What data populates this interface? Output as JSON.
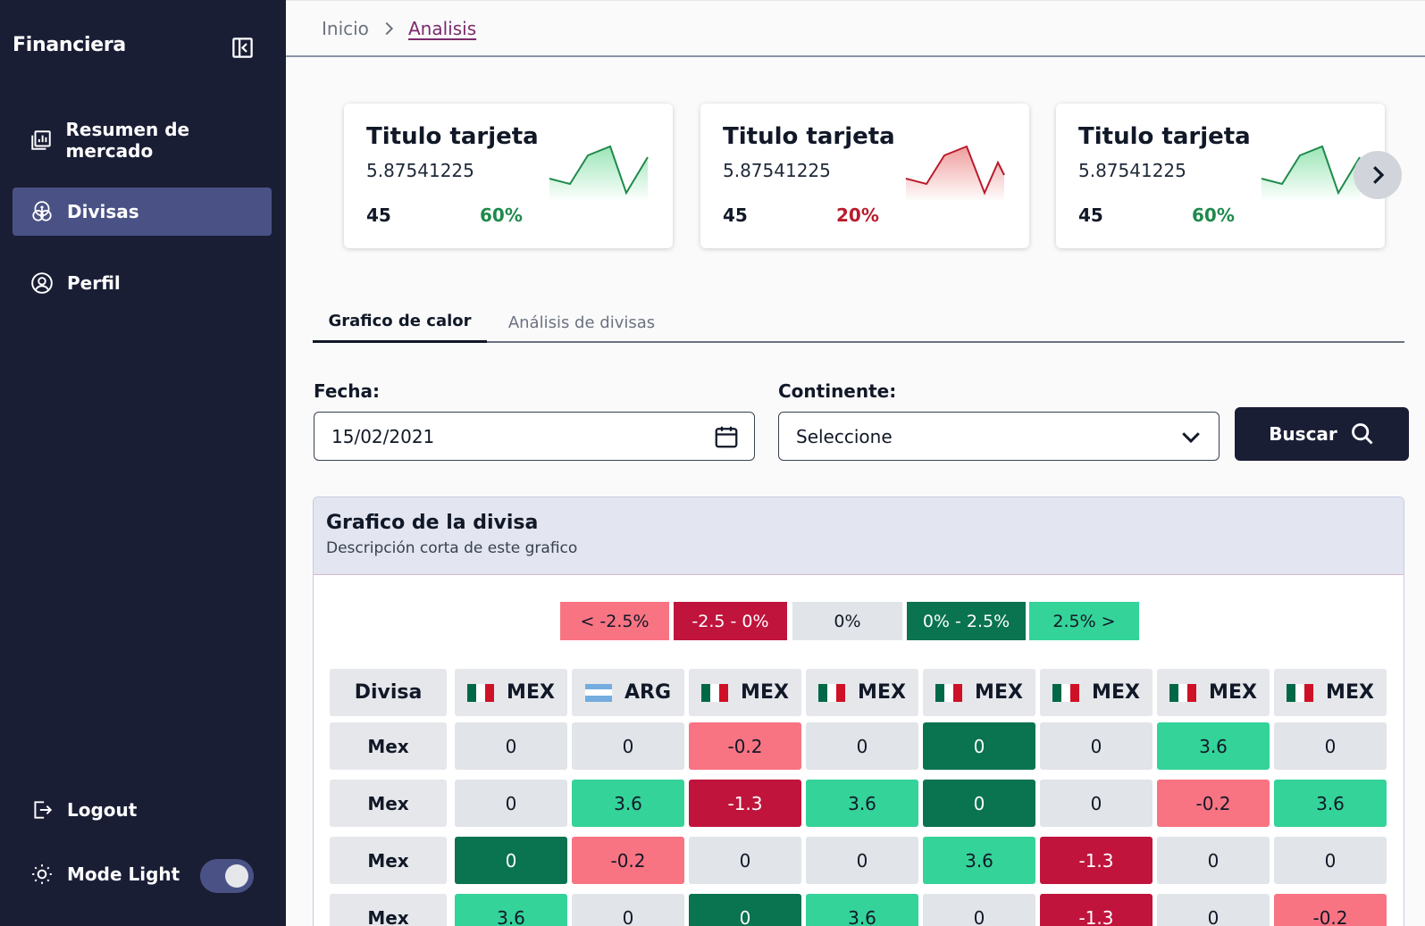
{
  "sidebar": {
    "brand": "Financiera",
    "nav": [
      {
        "label": "Resumen de mercado",
        "icon": "chart-report-icon",
        "active": false
      },
      {
        "label": "Divisas",
        "icon": "coins-icon",
        "active": true
      },
      {
        "label": "Perfil",
        "icon": "user-circle-icon",
        "active": false
      }
    ],
    "logout_label": "Logout",
    "mode_label": "Mode Light",
    "mode_toggle_on": true
  },
  "breadcrumb": {
    "home": "Inicio",
    "current": "Analisis"
  },
  "cards": [
    {
      "title": "Titulo tarjeta",
      "value": "5.87541225",
      "count": "45",
      "pct": "60%",
      "trend": "up",
      "color": "#1f8a4c"
    },
    {
      "title": "Titulo tarjeta",
      "value": "5.87541225",
      "count": "45",
      "pct": "20%",
      "trend": "down",
      "color": "#b91c2c"
    },
    {
      "title": "Titulo tarjeta",
      "value": "5.87541225",
      "count": "45",
      "pct": "60%",
      "trend": "up",
      "color": "#1f8a4c"
    }
  ],
  "tabs": [
    {
      "label": "Grafico de calor",
      "active": true
    },
    {
      "label": "Análisis de divisas",
      "active": false
    }
  ],
  "form": {
    "date_label": "Fecha:",
    "date_value": "15/02/2021",
    "continent_label": "Continente:",
    "continent_value": "Seleccione",
    "search_label": "Buscar"
  },
  "heatmap": {
    "title": "Grafico de la divisa",
    "subtitle": "Descripción corta de este grafico",
    "legend": [
      {
        "label": "< -2.5%",
        "bg": "#f87483",
        "fg": "#111827"
      },
      {
        "label": "-2.5 - 0%",
        "bg": "#c0143c",
        "fg": "#ffffff"
      },
      {
        "label": "0%",
        "bg": "#e1e4e8",
        "fg": "#111827"
      },
      {
        "label": "0% - 2.5%",
        "bg": "#0a7350",
        "fg": "#ffffff"
      },
      {
        "label": "2.5% >",
        "bg": "#34d399",
        "fg": "#111827"
      }
    ],
    "corner_label": "Divisa",
    "columns": [
      "MEX",
      "ARG",
      "MEX",
      "MEX",
      "MEX",
      "MEX",
      "MEX",
      "MEX"
    ],
    "column_flags": [
      "mx",
      "ar",
      "mx",
      "mx",
      "mx",
      "mx",
      "mx",
      "mx"
    ],
    "rows": [
      {
        "label": "Mex",
        "values": [
          "0",
          "0",
          "-0.2",
          "0",
          "0",
          "0",
          "3.6",
          "0"
        ],
        "levels": [
          2,
          2,
          0,
          2,
          3,
          2,
          4,
          2
        ]
      },
      {
        "label": "Mex",
        "values": [
          "0",
          "3.6",
          "-1.3",
          "3.6",
          "0",
          "0",
          "-0.2",
          "3.6"
        ],
        "levels": [
          2,
          4,
          1,
          4,
          3,
          2,
          0,
          4
        ]
      },
      {
        "label": "Mex",
        "values": [
          "0",
          "-0.2",
          "0",
          "0",
          "3.6",
          "-1.3",
          "0",
          "0"
        ],
        "levels": [
          3,
          0,
          2,
          2,
          4,
          1,
          2,
          2
        ]
      },
      {
        "label": "Mex",
        "values": [
          "3.6",
          "0",
          "0",
          "3.6",
          "0",
          "-1.3",
          "0",
          "-0.2"
        ],
        "levels": [
          4,
          2,
          3,
          4,
          2,
          1,
          2,
          0
        ]
      }
    ]
  }
}
